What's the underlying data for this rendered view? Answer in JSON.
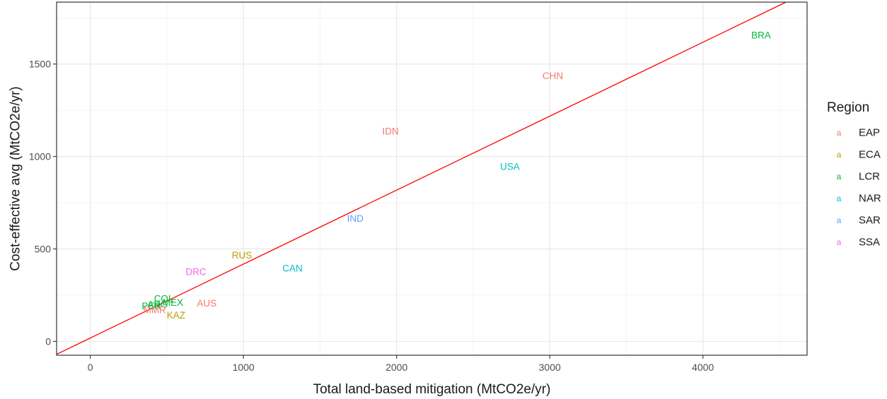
{
  "chart_data": {
    "type": "scatter",
    "xlabel": "Total land-based mitigation (MtCO2e/yr)",
    "ylabel": "Cost-effective avg (MtCO2e/yr)",
    "xlim": [
      -220,
      4680
    ],
    "ylim": [
      -75,
      1835
    ],
    "x_ticks": [
      0,
      1000,
      2000,
      3000,
      4000
    ],
    "y_ticks": [
      0,
      500,
      1000,
      1500
    ],
    "x_tick_labels": [
      "0",
      "1000",
      "2000",
      "3000",
      "4000"
    ],
    "y_tick_labels": [
      "0",
      "500",
      "1000",
      "1500"
    ],
    "grid": true,
    "fit_line": {
      "color": "#ff0000",
      "intercept": 18,
      "slope": 0.4
    },
    "legend": {
      "title": "Region",
      "placement": "right",
      "key_glyph": "a",
      "entries": [
        {
          "name": "EAP",
          "color": "#F8766D"
        },
        {
          "name": "ECA",
          "color": "#B79F00"
        },
        {
          "name": "LCR",
          "color": "#00BA38"
        },
        {
          "name": "NAR",
          "color": "#00BFC4"
        },
        {
          "name": "SAR",
          "color": "#619CFF"
        },
        {
          "name": "SSA",
          "color": "#F564E3"
        }
      ]
    },
    "points": [
      {
        "label": "BRA",
        "x": 4380,
        "y": 1655,
        "region": "LCR"
      },
      {
        "label": "CHN",
        "x": 3020,
        "y": 1435,
        "region": "EAP"
      },
      {
        "label": "IDN",
        "x": 1960,
        "y": 1135,
        "region": "EAP"
      },
      {
        "label": "USA",
        "x": 2740,
        "y": 945,
        "region": "NAR"
      },
      {
        "label": "IND",
        "x": 1730,
        "y": 665,
        "region": "SAR"
      },
      {
        "label": "RUS",
        "x": 990,
        "y": 465,
        "region": "ECA"
      },
      {
        "label": "CAN",
        "x": 1320,
        "y": 395,
        "region": "NAR"
      },
      {
        "label": "DRC",
        "x": 690,
        "y": 375,
        "region": "SSA"
      },
      {
        "label": "AUS",
        "x": 760,
        "y": 205,
        "region": "EAP"
      },
      {
        "label": "COL",
        "x": 480,
        "y": 230,
        "region": "LCR"
      },
      {
        "label": "MEX",
        "x": 540,
        "y": 210,
        "region": "LCR"
      },
      {
        "label": "PER",
        "x": 400,
        "y": 190,
        "region": "LCR"
      },
      {
        "label": "ARG",
        "x": 440,
        "y": 200,
        "region": "LCR"
      },
      {
        "label": "MMR",
        "x": 420,
        "y": 170,
        "region": "EAP"
      },
      {
        "label": "KAZ",
        "x": 560,
        "y": 140,
        "region": "ECA"
      }
    ]
  }
}
